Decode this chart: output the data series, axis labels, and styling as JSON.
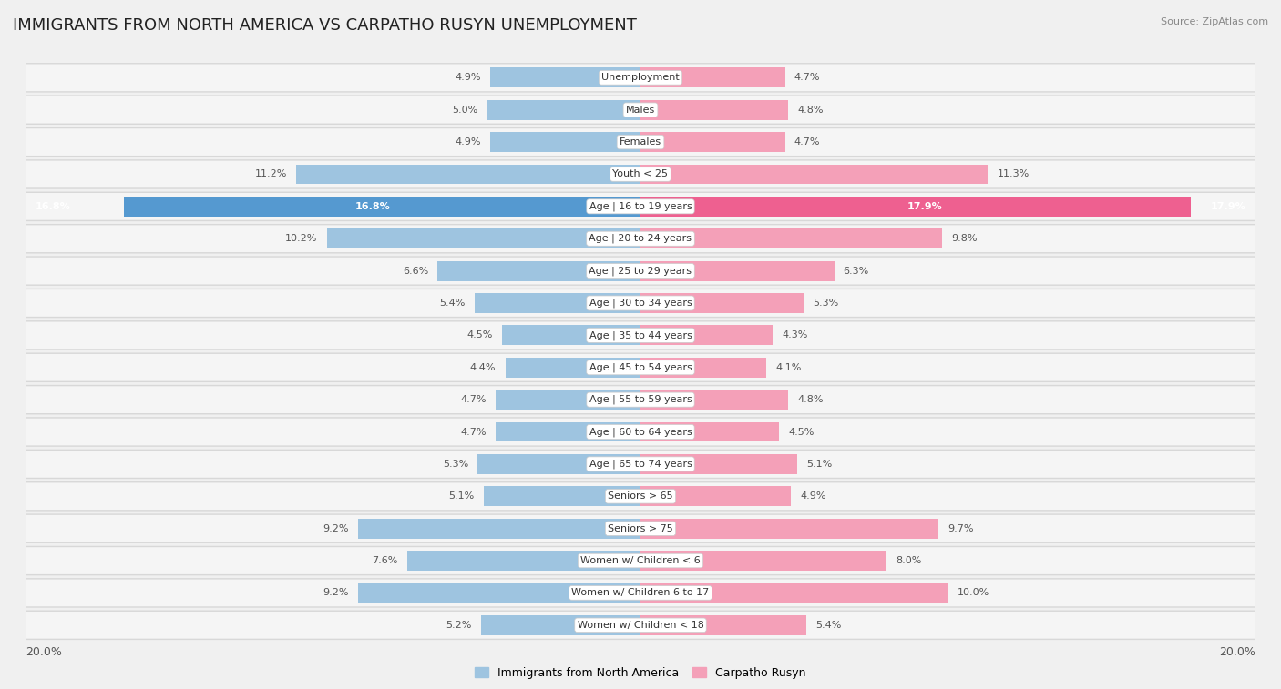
{
  "title": "IMMIGRANTS FROM NORTH AMERICA VS CARPATHO RUSYN UNEMPLOYMENT",
  "source": "Source: ZipAtlas.com",
  "categories": [
    "Unemployment",
    "Males",
    "Females",
    "Youth < 25",
    "Age | 16 to 19 years",
    "Age | 20 to 24 years",
    "Age | 25 to 29 years",
    "Age | 30 to 34 years",
    "Age | 35 to 44 years",
    "Age | 45 to 54 years",
    "Age | 55 to 59 years",
    "Age | 60 to 64 years",
    "Age | 65 to 74 years",
    "Seniors > 65",
    "Seniors > 75",
    "Women w/ Children < 6",
    "Women w/ Children 6 to 17",
    "Women w/ Children < 18"
  ],
  "left_values": [
    4.9,
    5.0,
    4.9,
    11.2,
    16.8,
    10.2,
    6.6,
    5.4,
    4.5,
    4.4,
    4.7,
    4.7,
    5.3,
    5.1,
    9.2,
    7.6,
    9.2,
    5.2
  ],
  "right_values": [
    4.7,
    4.8,
    4.7,
    11.3,
    17.9,
    9.8,
    6.3,
    5.3,
    4.3,
    4.1,
    4.8,
    4.5,
    5.1,
    4.9,
    9.7,
    8.0,
    10.0,
    5.4
  ],
  "left_color": "#9ec4e0",
  "right_color": "#f4a0b8",
  "left_highlight_color": "#5599d0",
  "right_highlight_color": "#ee6090",
  "highlight_index": 4,
  "xlim": 20.0,
  "axis_label": "20.0%",
  "left_label": "Immigrants from North America",
  "right_label": "Carpatho Rusyn",
  "background_color": "#f0f0f0",
  "row_odd_color": "#e8e8e8",
  "row_even_color": "#f8f8f8",
  "title_fontsize": 13,
  "source_fontsize": 8,
  "legend_fontsize": 9,
  "value_fontsize": 8,
  "category_fontsize": 8
}
